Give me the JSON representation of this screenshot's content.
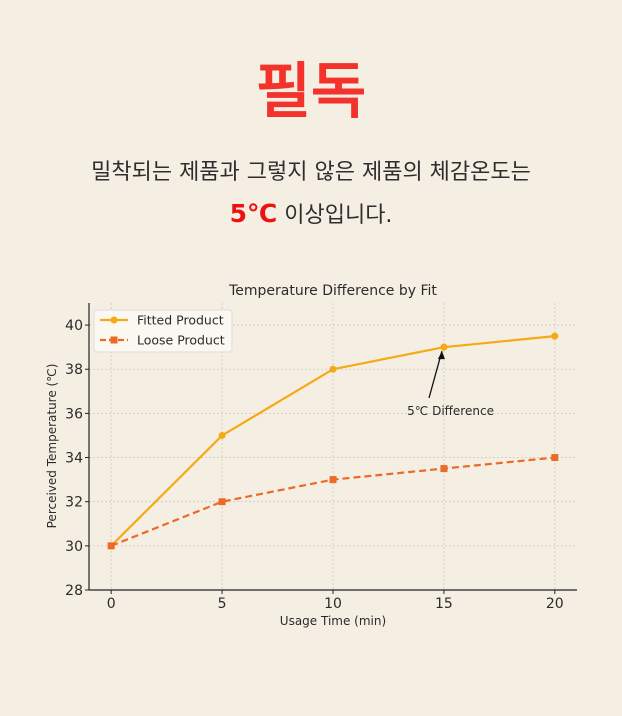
{
  "header": {
    "headline": "필독",
    "line1": "밀착되는 제품과 그렇지 않은 제품의 체감온도는",
    "highlight": "5℃",
    "line2_rest": " 이상입니다."
  },
  "chart_data": {
    "type": "line",
    "title": "Temperature Difference by Fit",
    "xlabel": "Usage Time (min)",
    "ylabel": "Perceived Temperature (℃)",
    "x": [
      0,
      5,
      10,
      15,
      20
    ],
    "xlim": [
      -1,
      21
    ],
    "ylim": [
      28,
      41
    ],
    "xticks": [
      "0",
      "5",
      "10",
      "15",
      "20"
    ],
    "yticks": [
      "28",
      "30",
      "32",
      "34",
      "36",
      "38",
      "40"
    ],
    "grid": true,
    "legend_position": "top-left",
    "series": [
      {
        "name": "Fitted Product",
        "values": [
          30,
          35,
          38,
          39,
          39.5
        ],
        "color": "#f5a915",
        "marker": "circle",
        "linestyle": "solid"
      },
      {
        "name": "Loose Product",
        "values": [
          30,
          32,
          33,
          33.5,
          34
        ],
        "color": "#ec6a28",
        "marker": "square",
        "linestyle": "dashed"
      }
    ],
    "annotation": {
      "text": "5℃ Difference",
      "x": 15,
      "y": 39,
      "text_x": 15.3,
      "text_y": 36.2
    }
  }
}
